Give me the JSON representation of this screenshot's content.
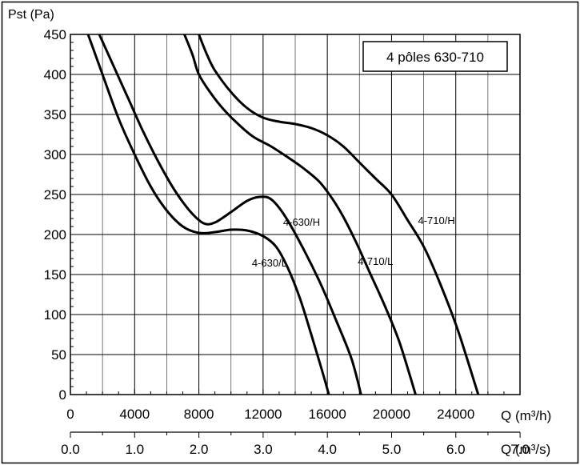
{
  "chart_data": {
    "type": "line",
    "legend_box": "4 pôles 630-710",
    "ylabel": "Pst (Pa)",
    "xlabel_primary": "Q (m³/h)",
    "xlabel_secondary": "Q (m³/s)",
    "xlim": [
      0,
      28000
    ],
    "ylim": [
      0,
      450
    ],
    "grid": true,
    "y_ticks": [
      0,
      50,
      100,
      150,
      200,
      250,
      300,
      350,
      400,
      450
    ],
    "x_ticks_primary": [
      0,
      4000,
      8000,
      12000,
      16000,
      20000,
      24000
    ],
    "x_ticks_secondary": [
      {
        "label": "0.0",
        "value": 0.0
      },
      {
        "label": "1.0",
        "value": 1.0
      },
      {
        "label": "2.0",
        "value": 2.0
      },
      {
        "label": "3.0",
        "value": 3.0
      },
      {
        "label": "4.0",
        "value": 4.0
      },
      {
        "label": "5.0",
        "value": 5.0
      },
      {
        "label": "6.0",
        "value": 6.0
      },
      {
        "label": "7.0",
        "value": 7.0
      }
    ],
    "series": [
      {
        "name": "4-630/L",
        "points": [
          [
            1100,
            450
          ],
          [
            2000,
            400
          ],
          [
            3000,
            345
          ],
          [
            4000,
            300
          ],
          [
            5000,
            260
          ],
          [
            6000,
            230
          ],
          [
            7000,
            210
          ],
          [
            8000,
            202
          ],
          [
            9000,
            203
          ],
          [
            10000,
            206
          ],
          [
            11000,
            205
          ],
          [
            12000,
            198
          ],
          [
            12800,
            185
          ],
          [
            13500,
            160
          ],
          [
            14300,
            120
          ],
          [
            15000,
            75
          ],
          [
            15600,
            35
          ],
          [
            16100,
            0
          ]
        ]
      },
      {
        "name": "4-630/H",
        "points": [
          [
            1800,
            450
          ],
          [
            2700,
            410
          ],
          [
            3600,
            370
          ],
          [
            4500,
            330
          ],
          [
            5500,
            290
          ],
          [
            6500,
            255
          ],
          [
            7500,
            228
          ],
          [
            8300,
            214
          ],
          [
            9000,
            215
          ],
          [
            10000,
            228
          ],
          [
            11000,
            242
          ],
          [
            11800,
            247
          ],
          [
            12500,
            244
          ],
          [
            13300,
            225
          ],
          [
            14300,
            190
          ],
          [
            15500,
            142
          ],
          [
            16500,
            95
          ],
          [
            17500,
            45
          ],
          [
            18100,
            0
          ]
        ]
      },
      {
        "name": "4-710/L",
        "points": [
          [
            7100,
            450
          ],
          [
            7600,
            425
          ],
          [
            8000,
            400
          ],
          [
            8800,
            375
          ],
          [
            9600,
            355
          ],
          [
            10500,
            337
          ],
          [
            11400,
            322
          ],
          [
            12500,
            310
          ],
          [
            13500,
            297
          ],
          [
            14500,
            283
          ],
          [
            15500,
            266
          ],
          [
            16300,
            245
          ],
          [
            17000,
            222
          ],
          [
            17800,
            190
          ],
          [
            18700,
            150
          ],
          [
            19600,
            110
          ],
          [
            20500,
            65
          ],
          [
            21500,
            0
          ]
        ]
      },
      {
        "name": "4-710/H",
        "points": [
          [
            8000,
            450
          ],
          [
            8500,
            425
          ],
          [
            9000,
            405
          ],
          [
            10000,
            378
          ],
          [
            11000,
            358
          ],
          [
            12000,
            346
          ],
          [
            13000,
            341
          ],
          [
            14000,
            338
          ],
          [
            15000,
            333
          ],
          [
            16000,
            324
          ],
          [
            17000,
            310
          ],
          [
            18000,
            290
          ],
          [
            19000,
            270
          ],
          [
            20000,
            250
          ],
          [
            21000,
            218
          ],
          [
            22000,
            185
          ],
          [
            23000,
            140
          ],
          [
            24000,
            88
          ],
          [
            24700,
            45
          ],
          [
            25400,
            0
          ]
        ]
      }
    ]
  }
}
